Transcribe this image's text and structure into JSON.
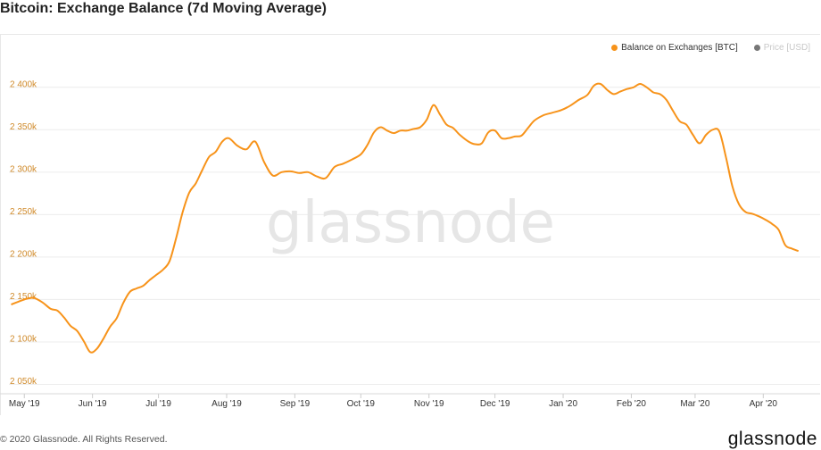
{
  "header": {
    "title": "Bitcoin: Exchange Balance (7d Moving Average)"
  },
  "legend": {
    "items": [
      {
        "label": "Balance on Exchanges [BTC]",
        "color": "#f7931a",
        "active": true
      },
      {
        "label": "Price [USD]",
        "color": "#777777",
        "active": false
      }
    ]
  },
  "watermark": "glassnode",
  "footer": {
    "copyright": "© 2020 Glassnode. All Rights Reserved.",
    "brand": "glassnode"
  },
  "chart_data": {
    "type": "line",
    "title": "Bitcoin: Exchange Balance (7d Moving Average)",
    "grid": true,
    "legend_position": "top-right",
    "ylim": [
      2040000,
      2445000
    ],
    "y_ticks": [
      2050000,
      2100000,
      2150000,
      2200000,
      2250000,
      2300000,
      2350000,
      2400000
    ],
    "y_tick_labels": [
      "2 050k",
      "2 100k",
      "2 150k",
      "2 200k",
      "2 250k",
      "2 300k",
      "2 350k",
      "2 400k"
    ],
    "x_tick_labels": [
      "May '19",
      "Jun '19",
      "Jul '19",
      "Aug '19",
      "Sep '19",
      "Oct '19",
      "Nov '19",
      "Dec '19",
      "Jan '20",
      "Feb '20",
      "Mar '20",
      "Apr '20"
    ],
    "x_tick_dates": [
      "2019-05-01",
      "2019-06-01",
      "2019-07-01",
      "2019-08-01",
      "2019-09-01",
      "2019-10-01",
      "2019-11-01",
      "2019-12-01",
      "2020-01-01",
      "2020-02-01",
      "2020-03-01",
      "2020-04-01"
    ],
    "series": [
      {
        "name": "Balance on Exchanges [BTC]",
        "color": "#f7931a",
        "x": [
          "2019-04-25",
          "2019-05-01",
          "2019-05-05",
          "2019-05-09",
          "2019-05-13",
          "2019-05-16",
          "2019-05-19",
          "2019-05-22",
          "2019-05-25",
          "2019-05-28",
          "2019-05-31",
          "2019-06-03",
          "2019-06-06",
          "2019-06-09",
          "2019-06-12",
          "2019-06-15",
          "2019-06-18",
          "2019-06-21",
          "2019-06-24",
          "2019-06-27",
          "2019-06-30",
          "2019-07-03",
          "2019-07-06",
          "2019-07-09",
          "2019-07-12",
          "2019-07-15",
          "2019-07-18",
          "2019-07-21",
          "2019-07-24",
          "2019-07-27",
          "2019-07-30",
          "2019-08-02",
          "2019-08-06",
          "2019-08-10",
          "2019-08-14",
          "2019-08-18",
          "2019-08-22",
          "2019-08-26",
          "2019-08-30",
          "2019-09-03",
          "2019-09-07",
          "2019-09-11",
          "2019-09-15",
          "2019-09-19",
          "2019-09-23",
          "2019-09-27",
          "2019-10-01",
          "2019-10-04",
          "2019-10-07",
          "2019-10-10",
          "2019-10-13",
          "2019-10-16",
          "2019-10-19",
          "2019-10-22",
          "2019-10-25",
          "2019-10-28",
          "2019-10-31",
          "2019-11-03",
          "2019-11-06",
          "2019-11-09",
          "2019-11-12",
          "2019-11-15",
          "2019-11-19",
          "2019-11-22",
          "2019-11-25",
          "2019-11-28",
          "2019-12-01",
          "2019-12-04",
          "2019-12-07",
          "2019-12-10",
          "2019-12-13",
          "2019-12-16",
          "2019-12-19",
          "2019-12-23",
          "2019-12-27",
          "2019-12-31",
          "2020-01-04",
          "2020-01-08",
          "2020-01-12",
          "2020-01-15",
          "2020-01-18",
          "2020-01-21",
          "2020-01-24",
          "2020-01-27",
          "2020-01-30",
          "2020-02-02",
          "2020-02-05",
          "2020-02-08",
          "2020-02-11",
          "2020-02-14",
          "2020-02-17",
          "2020-02-20",
          "2020-02-23",
          "2020-02-26",
          "2020-02-29",
          "2020-03-03",
          "2020-03-06",
          "2020-03-09",
          "2020-03-12",
          "2020-03-15",
          "2020-03-18",
          "2020-03-21",
          "2020-03-24",
          "2020-03-27",
          "2020-03-30",
          "2020-04-02",
          "2020-04-05",
          "2020-04-08",
          "2020-04-11",
          "2020-04-14",
          "2020-04-17"
        ],
        "values": [
          2144000,
          2150000,
          2152000,
          2147000,
          2139000,
          2137000,
          2129000,
          2119000,
          2113000,
          2101000,
          2088000,
          2092000,
          2104000,
          2118000,
          2128000,
          2146000,
          2159000,
          2163000,
          2166000,
          2173000,
          2179000,
          2185000,
          2195000,
          2222000,
          2253000,
          2276000,
          2287000,
          2303000,
          2318000,
          2324000,
          2336000,
          2340000,
          2331000,
          2327000,
          2336000,
          2312000,
          2296000,
          2300000,
          2301000,
          2299000,
          2300000,
          2295000,
          2293000,
          2306000,
          2310000,
          2315000,
          2321000,
          2332000,
          2347000,
          2353000,
          2349000,
          2346000,
          2349000,
          2349000,
          2351000,
          2353000,
          2362000,
          2379000,
          2368000,
          2356000,
          2352000,
          2344000,
          2336000,
          2333000,
          2334000,
          2347000,
          2349000,
          2340000,
          2340000,
          2342000,
          2343000,
          2352000,
          2361000,
          2367000,
          2370000,
          2373000,
          2378000,
          2385000,
          2391000,
          2402000,
          2404000,
          2397000,
          2392000,
          2395000,
          2398000,
          2400000,
          2404000,
          2400000,
          2394000,
          2392000,
          2385000,
          2372000,
          2360000,
          2356000,
          2344000,
          2334000,
          2344000,
          2350000,
          2348000,
          2318000,
          2283000,
          2262000,
          2253000,
          2251000,
          2248000,
          2244000,
          2239000,
          2232000,
          2214000,
          2210000,
          2207000
        ]
      }
    ]
  }
}
